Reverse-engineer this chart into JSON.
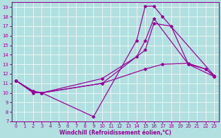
{
  "xlabel": "Windchill (Refroidissement éolien,°C)",
  "background_color": "#b2e0e0",
  "line_color": "#990099",
  "xlim": [
    -0.5,
    23.5
  ],
  "ylim": [
    7,
    19.5
  ],
  "xticks": [
    0,
    1,
    2,
    3,
    4,
    5,
    6,
    7,
    8,
    9,
    10,
    11,
    12,
    13,
    14,
    15,
    16,
    17,
    18,
    19,
    20,
    21,
    22,
    23
  ],
  "yticks": [
    7,
    8,
    9,
    10,
    11,
    12,
    13,
    14,
    15,
    16,
    17,
    18,
    19
  ],
  "lines": [
    {
      "x": [
        0,
        2,
        3,
        9,
        14,
        15,
        16,
        17,
        23
      ],
      "y": [
        11.3,
        10.1,
        10.0,
        7.5,
        15.5,
        19.1,
        19.1,
        18.0,
        11.8
      ]
    },
    {
      "x": [
        0,
        2,
        3,
        10,
        15,
        16,
        18,
        20,
        23
      ],
      "y": [
        11.3,
        10.0,
        10.0,
        11.0,
        14.5,
        17.3,
        17.0,
        13.0,
        11.7
      ]
    },
    {
      "x": [
        0,
        2,
        3,
        10,
        14,
        15,
        16,
        20,
        22,
        23
      ],
      "y": [
        11.3,
        10.2,
        10.0,
        11.5,
        13.8,
        15.5,
        17.8,
        13.0,
        12.5,
        11.8
      ]
    },
    {
      "x": [
        0,
        2,
        3,
        10,
        15,
        17,
        20,
        22,
        23
      ],
      "y": [
        11.3,
        10.1,
        10.0,
        11.0,
        12.5,
        13.0,
        13.1,
        12.5,
        11.7
      ]
    }
  ]
}
